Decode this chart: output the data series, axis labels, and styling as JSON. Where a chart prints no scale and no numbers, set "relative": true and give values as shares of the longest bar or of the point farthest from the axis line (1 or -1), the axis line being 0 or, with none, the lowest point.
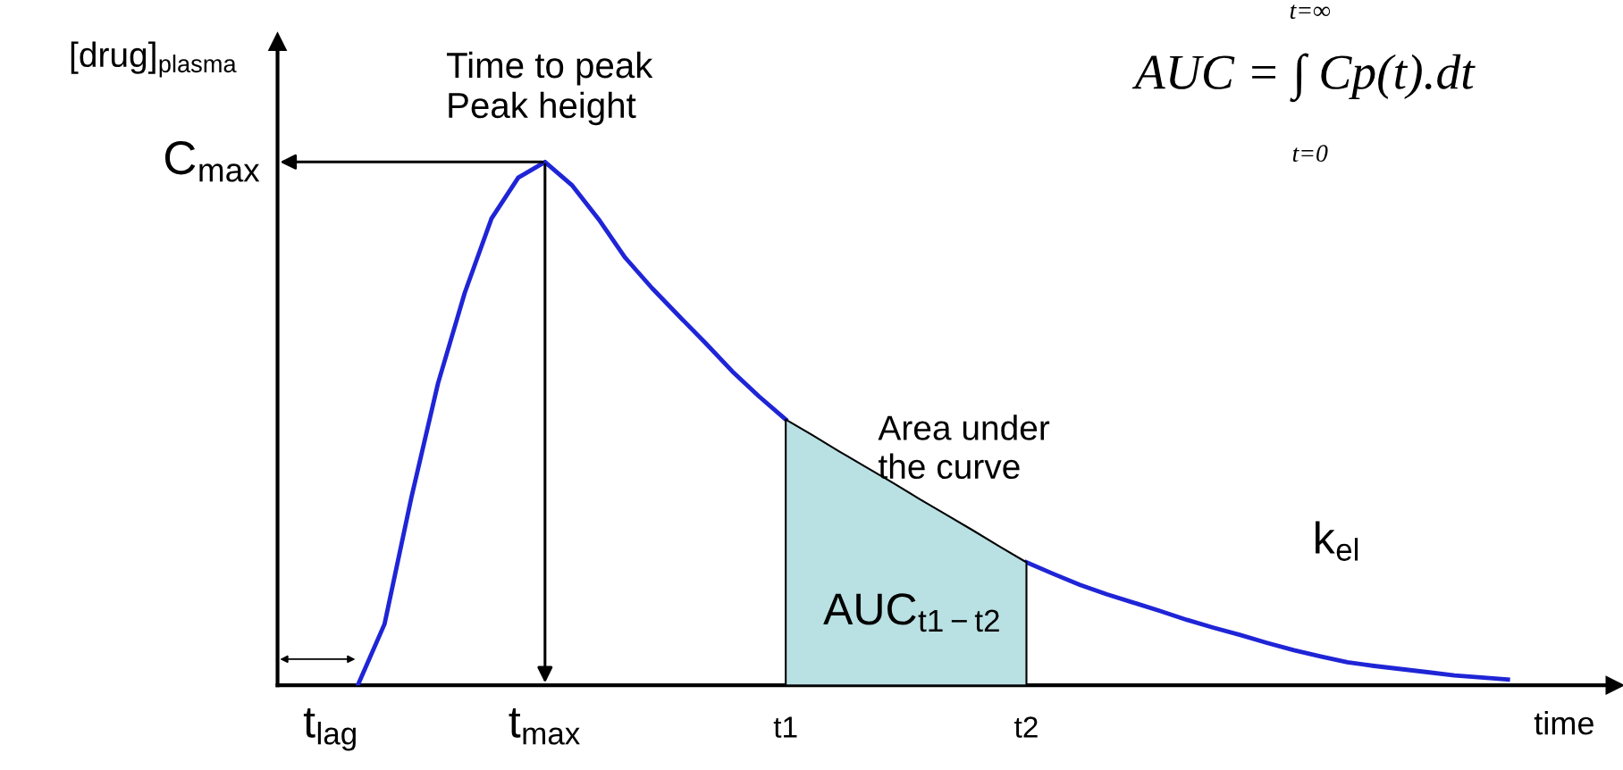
{
  "chart_data": {
    "type": "line",
    "relative": true,
    "xlabel": "time",
    "ylabel": "[drug]$_{plasma}$",
    "categories": [
      null,
      null,
      "t$_{lag}$",
      null,
      null,
      null,
      null,
      null,
      null,
      null,
      "t$_{max}$",
      null,
      null,
      null,
      null,
      null,
      null,
      null,
      null,
      "t1",
      null,
      null,
      null,
      null,
      null,
      null,
      null,
      null,
      "t2",
      null,
      null,
      null,
      null,
      null,
      null,
      null,
      null,
      null,
      null,
      null,
      null,
      null,
      null,
      null,
      null,
      null,
      null,
      null,
      null,
      null,
      null
    ],
    "series": [
      {
        "color": "#1f25d6",
        "values": [
          null,
          null,
          null,
          0,
          0.117,
          0.358,
          0.577,
          0.75,
          0.892,
          0.97,
          1,
          0.956,
          0.891,
          0.817,
          0.759,
          0.706,
          0.654,
          0.6,
          0.552,
          0.508,
          null,
          null,
          null,
          null,
          null,
          null,
          null,
          null,
          0.235,
          0.213,
          0.192,
          0.174,
          0.158,
          0.142,
          0.125,
          0.11,
          0.096,
          0.081,
          0.067,
          0.055,
          0.044,
          0.037,
          0.031,
          0.025,
          0.019,
          0.015,
          0.011,
          null,
          null,
          null,
          null
        ]
      },
      {
        "type": "area",
        "color": "#b9e0e3",
        "values": [
          null,
          null,
          null,
          null,
          null,
          null,
          null,
          null,
          null,
          null,
          null,
          null,
          null,
          null,
          null,
          null,
          null,
          null,
          null,
          0.508,
          0.478,
          0.447,
          0.417,
          0.387,
          0.356,
          0.326,
          0.296,
          0.265,
          0.235,
          null,
          null,
          null,
          null,
          null,
          null,
          null,
          null,
          null,
          null,
          null,
          null,
          null,
          null,
          null,
          null,
          null,
          null,
          null,
          null,
          null,
          null
        ]
      }
    ],
    "annotations": [
      "Time to peak\nPeak height",
      "C$_{max}$",
      "Area under\nthe curve",
      "AUC$_{t1−t2}$",
      "k$_{el}$",
      "AUC = ∫ Cp(t).dt",
      "t=∞",
      "t=0"
    ],
    "grid": false
  }
}
